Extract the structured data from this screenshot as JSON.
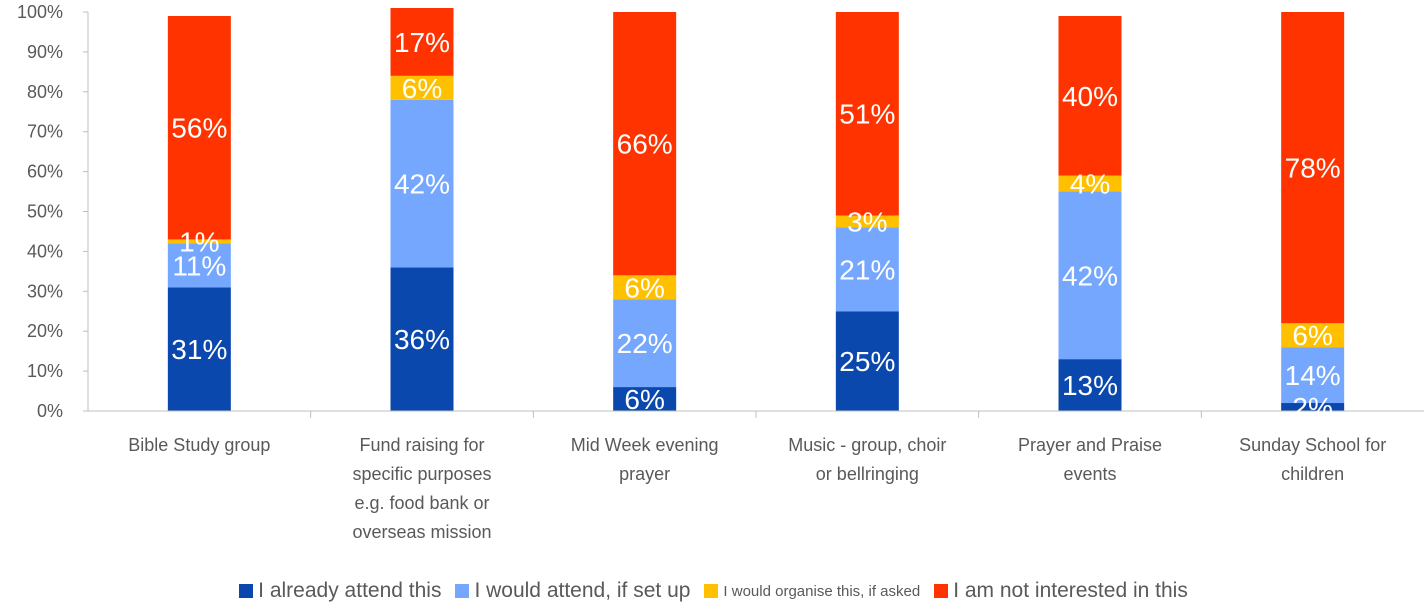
{
  "chart_data": {
    "type": "bar",
    "stacked": true,
    "percent": true,
    "categories": [
      [
        "Bible Study group"
      ],
      [
        "Fund raising for",
        "specific purposes",
        "e.g. food bank or",
        "overseas mission"
      ],
      [
        "Mid Week evening",
        "prayer"
      ],
      [
        "Music - group, choir",
        "or bellringing"
      ],
      [
        "Prayer and Praise",
        "events"
      ],
      [
        "Sunday School for",
        "children"
      ]
    ],
    "series": [
      {
        "name": "I already attend this",
        "color": "#0B48AE",
        "values": [
          31,
          36,
          6,
          25,
          13,
          2
        ],
        "labels": [
          "31%",
          "36%",
          "6%",
          "25%",
          "13%",
          "2%"
        ]
      },
      {
        "name": "I would attend, if set up",
        "color": "#75A7FE",
        "values": [
          11,
          42,
          22,
          21,
          42,
          14
        ],
        "labels": [
          "11%",
          "42%",
          "22%",
          "21%",
          "42%",
          "14%"
        ]
      },
      {
        "name": "I would organise this, if asked",
        "color": "#FFC000",
        "values": [
          1,
          6,
          6,
          3,
          4,
          6
        ],
        "labels": [
          "1%",
          "6%",
          "6%",
          "3%",
          "4%",
          "6%"
        ]
      },
      {
        "name": "I am not interested in this",
        "color": "#FF3300",
        "values": [
          56,
          17,
          66,
          51,
          40,
          78
        ],
        "labels": [
          "56%",
          "17%",
          "66%",
          "51%",
          "40%",
          "78%"
        ]
      }
    ],
    "ylim": [
      0,
      100
    ],
    "yticks": [
      "0%",
      "10%",
      "20%",
      "30%",
      "40%",
      "50%",
      "60%",
      "70%",
      "80%",
      "90%",
      "100%"
    ],
    "grid": false,
    "legend_position": "bottom"
  }
}
